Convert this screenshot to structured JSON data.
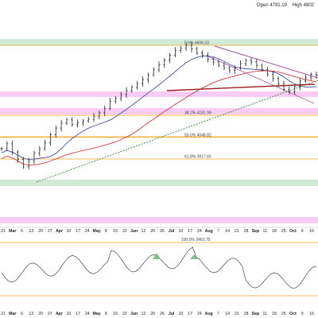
{
  "header": {
    "open_text": "Open 4791.19",
    "high_text": "High 4802"
  },
  "colors": {
    "orange_line": "#f5a623",
    "green_zone": "#c9e6cf",
    "pink_zone": "#f7c3f2",
    "sma_blue": "#3f51b5",
    "sma_red": "#d83a3a",
    "trend_green": "#2e8b2e",
    "resistance_purple": "#a64ca6",
    "neckline": "#9b1b1b",
    "bars": "#222222",
    "rsi_line": "#444444"
  },
  "chart_data": {
    "type": "line",
    "title": "",
    "xlabel": "",
    "ylabel": "",
    "x_ticks": [
      "21",
      "Mar",
      "6",
      "13",
      "20",
      "27",
      "Apr",
      "10",
      "17",
      "24",
      "May",
      "8",
      "15",
      "22",
      "Jun",
      "12",
      "20",
      "26",
      "Jul",
      "10",
      "17",
      "24",
      "Aug",
      "7",
      "14",
      "21",
      "28",
      "Sep",
      "11",
      "18",
      "25",
      "Oct",
      "9",
      "16"
    ],
    "month_ticks": [
      "Mar",
      "Apr",
      "May",
      "Jun",
      "Jul",
      "Aug",
      "Sep",
      "Oct"
    ],
    "fib_levels": [
      {
        "label": "0.0% 4606.33",
        "value": 4606.33
      },
      {
        "label": "38.2% 4181.99",
        "value": 4181.99
      },
      {
        "label": "50.0% 4048.82",
        "value": 4048.82
      },
      {
        "label": "61.8% 3917.65",
        "value": 3917.65
      }
    ],
    "rsi_fib_label": "100.0% 2460.79",
    "price_series": [
      3980,
      4010,
      3960,
      3915,
      3870,
      3905,
      3955,
      3980,
      4015,
      4065,
      4105,
      4135,
      4155,
      4128,
      4138,
      4148,
      4158,
      4175,
      4198,
      4225,
      4268,
      4285,
      4308,
      4332,
      4352,
      4375,
      4398,
      4428,
      4458,
      4488,
      4518,
      4545,
      4575,
      4590,
      4606,
      4585,
      4560,
      4545,
      4521,
      4505,
      4485,
      4470,
      4455,
      4470,
      4495,
      4515,
      4505,
      4485,
      4460,
      4432,
      4405,
      4375,
      4340,
      4325,
      4355,
      4390,
      4410,
      4430,
      4424
    ]
  }
}
